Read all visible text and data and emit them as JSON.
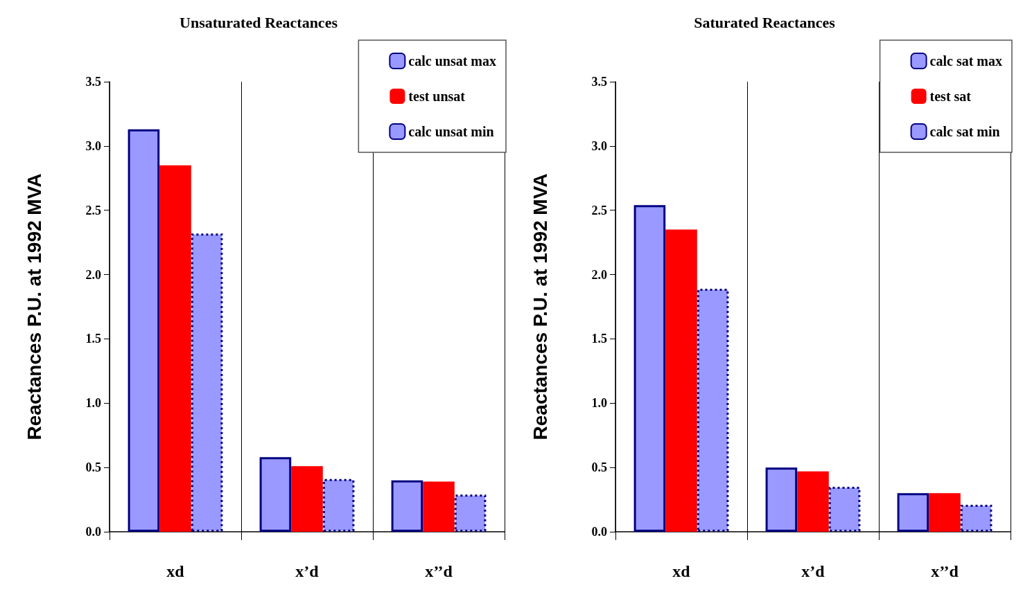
{
  "chart_data": [
    {
      "type": "bar",
      "title": "Unsaturated Reactances",
      "ylabel": "Reactances P.U. at 1992 MVA",
      "categories": [
        "xd",
        "x’d",
        "x’’d"
      ],
      "series": [
        {
          "name": "calc unsat max",
          "color": "#9999ff",
          "line_style": "solid",
          "values": [
            3.13,
            0.58,
            0.4
          ]
        },
        {
          "name": "test unsat",
          "color": "#ff0000",
          "values": [
            2.85,
            0.51,
            0.39
          ]
        },
        {
          "name": "calc unsat min",
          "color": "#9999ff",
          "line_style": "dotted",
          "values": [
            2.32,
            0.41,
            0.29
          ]
        }
      ],
      "ylim": [
        0,
        3.5
      ],
      "yticks": [
        {
          "value": 0,
          "label": "0.0"
        },
        0.5,
        {
          "value": 1,
          "label": "1.0"
        },
        1.5,
        {
          "value": 2,
          "label": "2.0"
        },
        2.5,
        {
          "value": 3,
          "label": "3.0"
        },
        3.5
      ],
      "grid": "x",
      "legend": "top right"
    },
    {
      "type": "bar",
      "title": "Saturated Reactances",
      "ylabel": "Reactances P.U. at 1992 MVA",
      "categories": [
        "xd",
        "x’d",
        "x’’d"
      ],
      "series": [
        {
          "name": "calc sat max",
          "color": "#9999ff",
          "line_style": "solid",
          "values": [
            2.54,
            0.5,
            0.3
          ]
        },
        {
          "name": "test sat",
          "color": "#ff0000",
          "values": [
            2.35,
            0.47,
            0.3
          ]
        },
        {
          "name": "calc sat min",
          "color": "#9999ff",
          "line_style": "dotted",
          "values": [
            1.89,
            0.35,
            0.21
          ]
        }
      ],
      "ylim": [
        0,
        3.5
      ],
      "yticks": [
        {
          "value": 0,
          "label": "0.0"
        },
        0.5,
        {
          "value": 1,
          "label": "1.0"
        },
        1.5,
        {
          "value": 2,
          "label": "2.0"
        },
        2.5,
        {
          "value": 3,
          "label": "3.0"
        },
        3.5
      ],
      "grid": "x",
      "legend": "top right"
    }
  ]
}
